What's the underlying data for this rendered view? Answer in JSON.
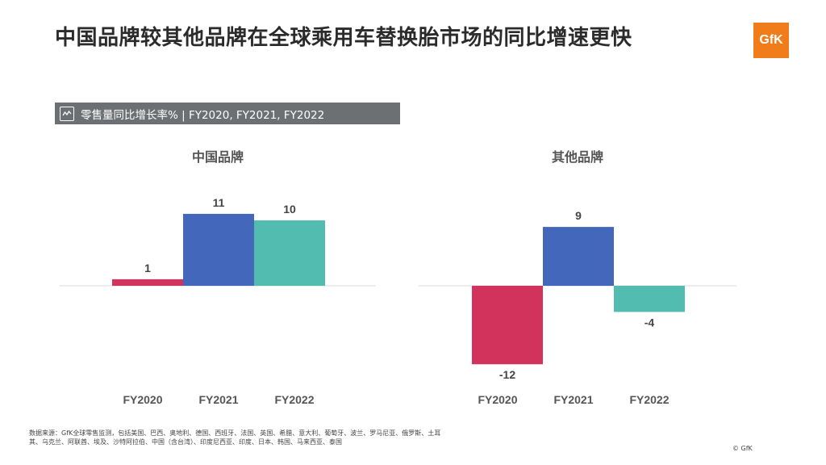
{
  "title": "中国品牌较其他品牌在全球乘用车替换胎市场的同比增速更快",
  "logo_text": "GfK",
  "subtitle": "零售量同比增长率% | FY2020, FY2021, FY2022",
  "colors": {
    "FY2020": "#d2335c",
    "FY2021": "#4267bb",
    "FY2022": "#53bcb0",
    "subtitle_bg": "#6d7072",
    "logo": "#f07d1a"
  },
  "chart_data": [
    {
      "type": "bar",
      "title": "中国品牌",
      "categories": [
        "FY2020",
        "FY2021",
        "FY2022"
      ],
      "values": [
        1,
        11,
        10
      ],
      "data_labels": [
        "1",
        "11",
        "10"
      ]
    },
    {
      "type": "bar",
      "title": "其他品牌",
      "categories": [
        "FY2020",
        "FY2021",
        "FY2022"
      ],
      "values": [
        -12,
        9,
        -4
      ],
      "data_labels": [
        "-12",
        "9",
        "-4"
      ]
    }
  ],
  "source_text": "数据来源：GfK全球零售监测，包括美国、巴西、奥地利、德国、西班牙、法国、英国、希腊、意大利、葡萄牙、波兰、罗马尼亚、俄罗斯、土耳其、乌克兰、阿联酋、埃及、沙特阿拉伯、中国（含台湾）、印度尼西亚、印度、日本、韩国、马来西亚、泰国",
  "copyright": "© GfK"
}
